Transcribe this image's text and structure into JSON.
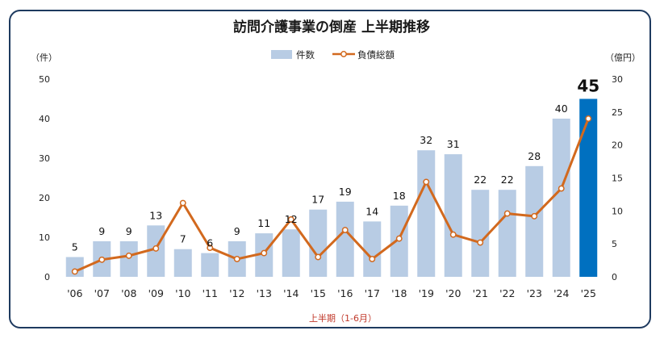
{
  "chart_data": {
    "type": "bar",
    "title": "訪問介護事業の倒産 上半期推移",
    "left_unit": "（件）",
    "right_unit": "（億円）",
    "xlabel": "上半期（1-6月）",
    "categories": [
      "'06",
      "'07",
      "'08",
      "'09",
      "'10",
      "'11",
      "'12",
      "'13",
      "'14",
      "'15",
      "'16",
      "'17",
      "'18",
      "'19",
      "'20",
      "'21",
      "'22",
      "'23",
      "'24",
      "'25"
    ],
    "series": [
      {
        "name": "件数",
        "axis": "left",
        "type": "bar",
        "values": [
          5,
          9,
          9,
          13,
          7,
          6,
          9,
          11,
          12,
          17,
          19,
          14,
          18,
          32,
          31,
          22,
          22,
          28,
          40,
          45
        ]
      },
      {
        "name": "負債総額",
        "axis": "right",
        "type": "line",
        "values": [
          0.8,
          2.6,
          3.2,
          4.3,
          11.2,
          4.4,
          2.7,
          3.6,
          8.7,
          3.0,
          7.1,
          2.7,
          5.8,
          14.4,
          6.4,
          5.2,
          9.6,
          9.2,
          13.4,
          24.0
        ]
      }
    ],
    "ylim_left": [
      0,
      50
    ],
    "yticks_left": [
      "0",
      "10",
      "20",
      "30",
      "40",
      "50"
    ],
    "ylim_right": [
      0,
      30
    ],
    "yticks_right": [
      "0",
      "5",
      "10",
      "15",
      "20",
      "25",
      "30"
    ],
    "highlight_index": 19,
    "colors": {
      "bar": "#b8cce4",
      "bar_highlight": "#0070c0",
      "line": "#d2691e",
      "marker_fill": "#ffffff",
      "frame": "#1e3a5f",
      "subtitle": "#c0392b"
    }
  }
}
